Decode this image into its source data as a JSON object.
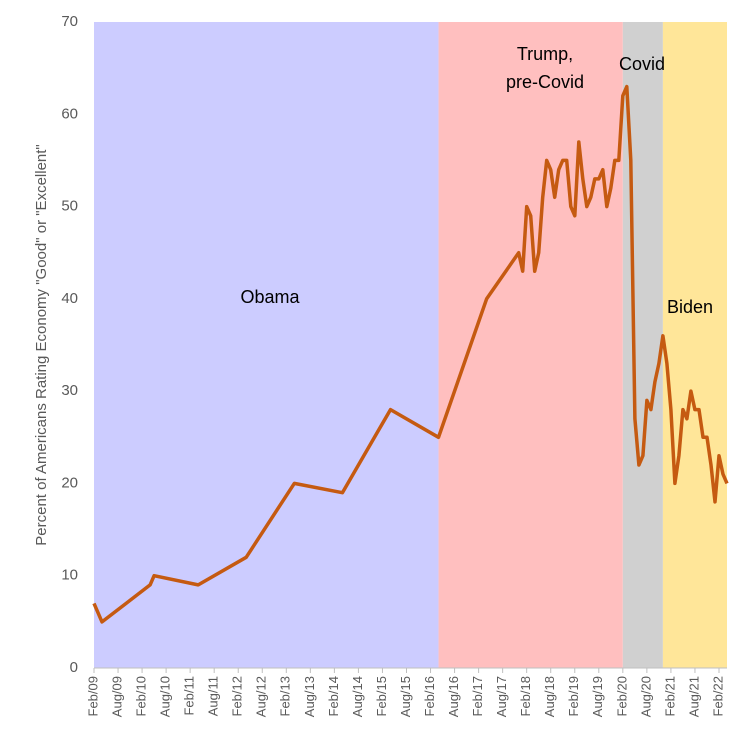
{
  "chart_data": {
    "type": "line",
    "ylabel": "Percent of Americans Rating Economy \"Good\" or \"Excellent\"",
    "color": "#c55a11",
    "x": [
      "2009-02",
      "2009-04",
      "2010-04",
      "2010-05",
      "2011-04",
      "2012-04",
      "2013-04",
      "2014-04",
      "2015-04",
      "2016-04",
      "2017-04",
      "2017-12",
      "2018-01",
      "2018-02",
      "2018-03",
      "2018-04",
      "2018-05",
      "2018-06",
      "2018-07",
      "2018-08",
      "2018-09",
      "2018-10",
      "2018-11",
      "2018-12",
      "2019-01",
      "2019-02",
      "2019-03",
      "2019-04",
      "2019-05",
      "2019-06",
      "2019-07",
      "2019-08",
      "2019-09",
      "2019-10",
      "2019-11",
      "2019-12",
      "2020-01",
      "2020-02",
      "2020-03",
      "2020-04",
      "2020-05",
      "2020-06",
      "2020-07",
      "2020-08",
      "2020-09",
      "2020-10",
      "2020-11",
      "2020-12",
      "2021-01",
      "2021-02",
      "2021-03",
      "2021-04",
      "2021-05",
      "2021-06",
      "2021-07",
      "2021-08",
      "2021-09",
      "2021-10",
      "2021-11",
      "2021-12",
      "2022-01",
      "2022-02",
      "2022-03",
      "2022-04"
    ],
    "values": [
      7,
      5,
      9,
      10,
      9,
      12,
      20,
      19,
      28,
      25,
      40,
      45,
      43,
      50,
      49,
      43,
      45,
      51,
      55,
      54,
      51,
      54,
      55,
      55,
      50,
      49,
      57,
      53,
      50,
      51,
      53,
      53,
      54,
      50,
      52,
      55,
      55,
      62,
      63,
      55,
      27,
      22,
      23,
      29,
      28,
      31,
      33,
      36,
      33,
      28,
      20,
      23,
      28,
      27,
      30,
      28,
      28,
      25,
      25,
      22,
      18,
      23,
      21,
      20
    ],
    "xlim": [
      "2009-02",
      "2022-04"
    ],
    "xticks": [
      {
        "value": "2009-02",
        "label": "Feb/09"
      },
      {
        "value": "2009-08",
        "label": "Aug/09"
      },
      {
        "value": "2010-02",
        "label": "Feb/10"
      },
      {
        "value": "2010-08",
        "label": "Aug/10"
      },
      {
        "value": "2011-02",
        "label": "Feb/11"
      },
      {
        "value": "2011-08",
        "label": "Aug/11"
      },
      {
        "value": "2012-02",
        "label": "Feb/12"
      },
      {
        "value": "2012-08",
        "label": "Aug/12"
      },
      {
        "value": "2013-02",
        "label": "Feb/13"
      },
      {
        "value": "2013-08",
        "label": "Aug/13"
      },
      {
        "value": "2014-02",
        "label": "Feb/14"
      },
      {
        "value": "2014-08",
        "label": "Aug/14"
      },
      {
        "value": "2015-02",
        "label": "Feb/15"
      },
      {
        "value": "2015-08",
        "label": "Aug/15"
      },
      {
        "value": "2016-02",
        "label": "Feb/16"
      },
      {
        "value": "2016-08",
        "label": "Aug/16"
      },
      {
        "value": "2017-02",
        "label": "Feb/17"
      },
      {
        "value": "2017-08",
        "label": "Aug/17"
      },
      {
        "value": "2018-02",
        "label": "Feb/18"
      },
      {
        "value": "2018-08",
        "label": "Aug/18"
      },
      {
        "value": "2019-02",
        "label": "Feb/19"
      },
      {
        "value": "2019-08",
        "label": "Aug/19"
      },
      {
        "value": "2020-02",
        "label": "Feb/20"
      },
      {
        "value": "2020-08",
        "label": "Aug/20"
      },
      {
        "value": "2021-02",
        "label": "Feb/21"
      },
      {
        "value": "2021-08",
        "label": "Aug/21"
      },
      {
        "value": "2022-02",
        "label": "Feb/22"
      }
    ],
    "ylim": [
      0,
      70
    ],
    "yticks": [
      0,
      10,
      20,
      30,
      40,
      50,
      60,
      70
    ],
    "grid": false,
    "regions": [
      {
        "label": [
          "Obama"
        ],
        "start": "2009-02",
        "end": "2016-04",
        "color": "#ccccff"
      },
      {
        "label": [
          "Trump,",
          "pre-Covid"
        ],
        "start": "2016-04",
        "end": "2020-02",
        "color": "#ffbfbf"
      },
      {
        "label": [
          "Covid"
        ],
        "start": "2020-02",
        "end": "2020-12",
        "color": "#d0d0d0"
      },
      {
        "label": [
          "Biden"
        ],
        "start": "2020-12",
        "end": "2022-04",
        "color": "#ffe699"
      }
    ]
  }
}
